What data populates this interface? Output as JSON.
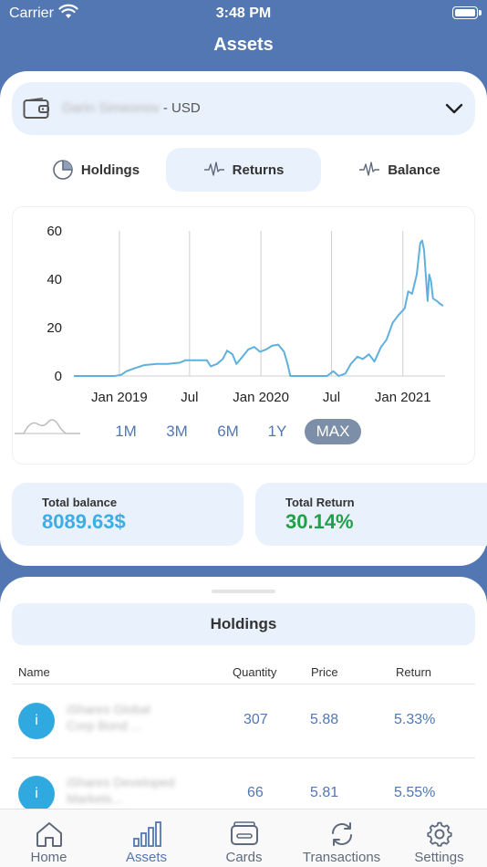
{
  "status_bar": {
    "carrier": "Carrier",
    "time": "3:48 PM"
  },
  "nav": {
    "title": "Assets"
  },
  "account": {
    "owner_name": "Darin Simeonov",
    "currency_suffix": " - USD"
  },
  "tabs": [
    {
      "label": "Holdings",
      "icon": "pie-chart-icon",
      "active": false
    },
    {
      "label": "Returns",
      "icon": "waveform-icon",
      "active": true
    },
    {
      "label": "Balance",
      "icon": "waveform-icon",
      "active": false
    }
  ],
  "chart_data": {
    "type": "line",
    "title": "",
    "xlabel": "",
    "ylabel": "",
    "x_tick_labels": [
      "Jan 2019",
      "Jul",
      "Jan 2020",
      "Jul",
      "Jan 2021"
    ],
    "y_ticks": [
      0,
      20,
      40,
      60
    ],
    "ylim": [
      0,
      60
    ],
    "xlim": [
      "2018-09-01",
      "2021-04-15"
    ],
    "grid": "vertical",
    "series": [
      {
        "color": "#5fb0dc",
        "points": [
          [
            "2018-09-01",
            0
          ],
          [
            "2018-12-15",
            0
          ],
          [
            "2019-01-01",
            0.5
          ],
          [
            "2019-01-15",
            2
          ],
          [
            "2019-02-01",
            3
          ],
          [
            "2019-03-01",
            4.5
          ],
          [
            "2019-04-01",
            5
          ],
          [
            "2019-05-01",
            5
          ],
          [
            "2019-06-01",
            5.5
          ],
          [
            "2019-06-15",
            6.5
          ],
          [
            "2019-07-15",
            6.5
          ],
          [
            "2019-08-10",
            6.5
          ],
          [
            "2019-08-20",
            4
          ],
          [
            "2019-09-05",
            5
          ],
          [
            "2019-09-20",
            7
          ],
          [
            "2019-10-01",
            10.5
          ],
          [
            "2019-10-15",
            9
          ],
          [
            "2019-10-25",
            5
          ],
          [
            "2019-11-10",
            8
          ],
          [
            "2019-11-25",
            11
          ],
          [
            "2019-12-10",
            12
          ],
          [
            "2019-12-25",
            10
          ],
          [
            "2020-01-10",
            11
          ],
          [
            "2020-01-25",
            12.5
          ],
          [
            "2020-02-10",
            13
          ],
          [
            "2020-02-25",
            10
          ],
          [
            "2020-03-05",
            5
          ],
          [
            "2020-03-12",
            0
          ],
          [
            "2020-06-15",
            0
          ],
          [
            "2020-07-01",
            2
          ],
          [
            "2020-07-15",
            0
          ],
          [
            "2020-08-01",
            1
          ],
          [
            "2020-08-15",
            5
          ],
          [
            "2020-09-01",
            8
          ],
          [
            "2020-09-15",
            7
          ],
          [
            "2020-10-01",
            9
          ],
          [
            "2020-10-15",
            6
          ],
          [
            "2020-11-01",
            12
          ],
          [
            "2020-11-15",
            15
          ],
          [
            "2020-12-01",
            22
          ],
          [
            "2020-12-15",
            25
          ],
          [
            "2021-01-01",
            28
          ],
          [
            "2021-01-10",
            35
          ],
          [
            "2021-01-20",
            34
          ],
          [
            "2021-02-01",
            42
          ],
          [
            "2021-02-10",
            55
          ],
          [
            "2021-02-15",
            56
          ],
          [
            "2021-02-20",
            52
          ],
          [
            "2021-02-25",
            40
          ],
          [
            "2021-03-01",
            31
          ],
          [
            "2021-03-05",
            42
          ],
          [
            "2021-03-10",
            39
          ],
          [
            "2021-03-15",
            32
          ],
          [
            "2021-03-25",
            31
          ],
          [
            "2021-04-01",
            30
          ],
          [
            "2021-04-10",
            29
          ]
        ]
      }
    ]
  },
  "ranges": [
    {
      "label": "1M",
      "active": false
    },
    {
      "label": "3M",
      "active": false
    },
    {
      "label": "6M",
      "active": false
    },
    {
      "label": "1Y",
      "active": false
    },
    {
      "label": "MAX",
      "active": true
    }
  ],
  "stats": {
    "balance_label": "Total balance",
    "balance_value": "8089.63$",
    "return_label": "Total Return",
    "return_value": "30.14%"
  },
  "holdings": {
    "header": "Holdings",
    "columns": [
      "Name",
      "Quantity",
      "Price",
      "Return"
    ],
    "rows": [
      {
        "avatar": "i",
        "name": "iShares Global Corp Bond ...",
        "quantity": "307",
        "price": "5.88",
        "return": "5.33%"
      },
      {
        "avatar": "i",
        "name": "iShares Developed Markets...",
        "quantity": "66",
        "price": "5.81",
        "return": "5.55%"
      }
    ]
  },
  "tab_bar": [
    {
      "label": "Home",
      "icon": "home-icon",
      "active": false
    },
    {
      "label": "Assets",
      "icon": "bar-chart-icon",
      "active": true
    },
    {
      "label": "Cards",
      "icon": "wallet-card-icon",
      "active": false
    },
    {
      "label": "Transactions",
      "icon": "refresh-icon",
      "active": false
    },
    {
      "label": "Settings",
      "icon": "gear-icon",
      "active": false
    }
  ],
  "colors": {
    "brand": "#5277b3",
    "tint_bg": "#e9f1fc",
    "balance": "#3aaee5",
    "return": "#20a048"
  }
}
